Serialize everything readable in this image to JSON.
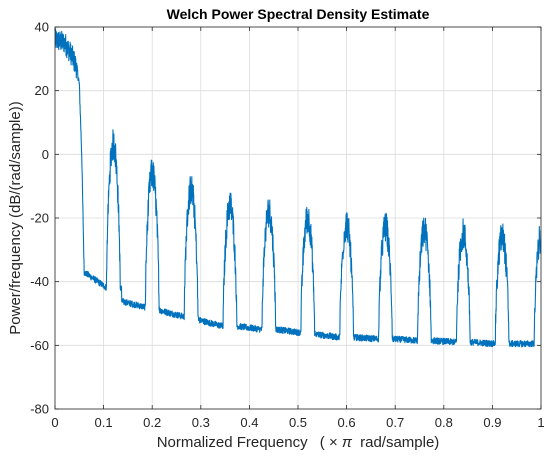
{
  "chart_data": {
    "type": "line",
    "title": "Welch Power Spectral Density Estimate",
    "xlabel_prefix": "Normalized Frequency",
    "xlabel_paren_open": "(",
    "xlabel_times": "×",
    "xlabel_pi": "π",
    "xlabel_suffix": "rad/sample)",
    "ylabel": "Power/frequency (dB/(rad/sample))",
    "xlim": [
      0,
      1
    ],
    "ylim": [
      -80,
      40
    ],
    "x_ticks": [
      0,
      0.1,
      0.2,
      0.3,
      0.4,
      0.5,
      0.6,
      0.7,
      0.8,
      0.9,
      1
    ],
    "x_tick_labels": [
      "0",
      "0.1",
      "0.2",
      "0.3",
      "0.4",
      "0.5",
      "0.6",
      "0.7",
      "0.8",
      "0.9",
      "1"
    ],
    "y_ticks": [
      -80,
      -60,
      -40,
      -20,
      0,
      20,
      40
    ],
    "y_tick_labels": [
      "-80",
      "-60",
      "-40",
      "-20",
      "0",
      "20",
      "40"
    ],
    "grid": true,
    "series_color": "#0072BD",
    "baseline_segments": [
      {
        "x": [
          0.06,
          0.107
        ],
        "y": [
          -37,
          -42
        ]
      },
      {
        "x": [
          0.133,
          0.185
        ],
        "y": [
          -46,
          -48
        ]
      },
      {
        "x": [
          0.215,
          0.265
        ],
        "y": [
          -49,
          -51
        ]
      },
      {
        "x": [
          0.295,
          0.345
        ],
        "y": [
          -52,
          -54
        ]
      },
      {
        "x": [
          0.375,
          0.425
        ],
        "y": [
          -54,
          -55
        ]
      },
      {
        "x": [
          0.455,
          0.505
        ],
        "y": [
          -55,
          -56
        ]
      },
      {
        "x": [
          0.535,
          0.585
        ],
        "y": [
          -56.5,
          -57.5
        ]
      },
      {
        "x": [
          0.615,
          0.665
        ],
        "y": [
          -57.5,
          -58
        ]
      },
      {
        "x": [
          0.695,
          0.745
        ],
        "y": [
          -58,
          -58.5
        ]
      },
      {
        "x": [
          0.775,
          0.825
        ],
        "y": [
          -58.5,
          -59
        ]
      },
      {
        "x": [
          0.855,
          0.905
        ],
        "y": [
          -59,
          -59.5
        ]
      },
      {
        "x": [
          0.935,
          0.985
        ],
        "y": [
          -59.5,
          -59.5
        ]
      }
    ],
    "main_lobe": {
      "x": [
        0,
        0.02,
        0.035,
        0.045,
        0.05,
        0.055,
        0.06
      ],
      "y": [
        36,
        35,
        31,
        27,
        22,
        0,
        -37
      ]
    },
    "peaks": [
      {
        "x": 0.12,
        "y": 3
      },
      {
        "x": 0.2,
        "y": -6
      },
      {
        "x": 0.28,
        "y": -11
      },
      {
        "x": 0.36,
        "y": -16
      },
      {
        "x": 0.44,
        "y": -18
      },
      {
        "x": 0.52,
        "y": -20
      },
      {
        "x": 0.6,
        "y": -22
      },
      {
        "x": 0.68,
        "y": -23
      },
      {
        "x": 0.76,
        "y": -24
      },
      {
        "x": 0.84,
        "y": -25
      },
      {
        "x": 0.92,
        "y": -26
      },
      {
        "x": 1.0,
        "y": -26
      }
    ]
  }
}
